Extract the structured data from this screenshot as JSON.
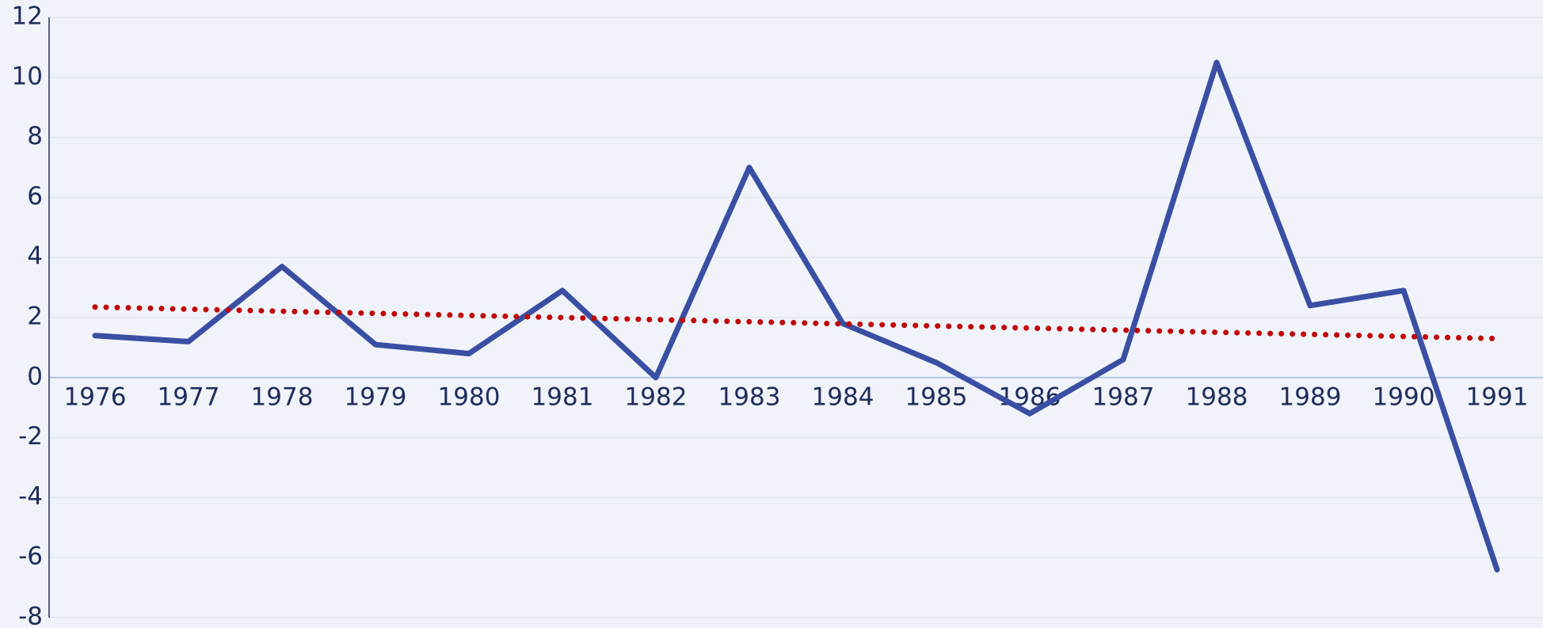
{
  "chart_data": {
    "type": "line",
    "categories": [
      "1976",
      "1977",
      "1978",
      "1979",
      "1980",
      "1981",
      "1982",
      "1983",
      "1984",
      "1985",
      "1986",
      "1987",
      "1988",
      "1989",
      "1990",
      "1991"
    ],
    "series": [
      {
        "color": "#3a4fa3",
        "style": "solid",
        "values": [
          1.4,
          1.2,
          3.7,
          1.1,
          0.8,
          2.9,
          0.0,
          7.0,
          1.8,
          0.5,
          -1.2,
          0.6,
          10.5,
          2.4,
          2.9,
          -6.4
        ]
      },
      {
        "color": "#c00000",
        "style": "dotted",
        "values": [
          2.35,
          2.28,
          2.21,
          2.14,
          2.07,
          2.0,
          1.93,
          1.86,
          1.79,
          1.72,
          1.65,
          1.58,
          1.51,
          1.44,
          1.37,
          1.3
        ]
      }
    ],
    "ylim": [
      -8,
      12
    ],
    "yticks": [
      -8,
      -6,
      -4,
      -2,
      0,
      2,
      4,
      6,
      8,
      10,
      12
    ],
    "grid": true
  }
}
